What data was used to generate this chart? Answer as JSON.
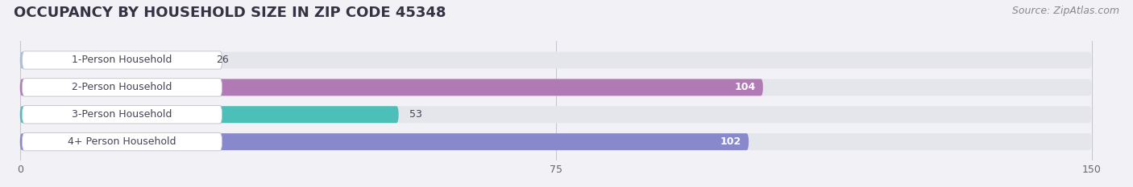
{
  "title": "OCCUPANCY BY HOUSEHOLD SIZE IN ZIP CODE 45348",
  "source": "Source: ZipAtlas.com",
  "categories": [
    "1-Person Household",
    "2-Person Household",
    "3-Person Household",
    "4+ Person Household"
  ],
  "values": [
    26,
    104,
    53,
    102
  ],
  "bar_colors": [
    "#a8bede",
    "#b07ab5",
    "#4bbfb8",
    "#8888cc"
  ],
  "label_colors": [
    "#555555",
    "#ffffff",
    "#555555",
    "#ffffff"
  ],
  "xlim_max": 150,
  "xticks": [
    0,
    75,
    150
  ],
  "background_color": "#f2f2f6",
  "bar_bg_color": "#e5e5ec",
  "title_fontsize": 13,
  "source_fontsize": 9,
  "bar_label_fontsize": 9,
  "value_fontsize": 9,
  "tick_fontsize": 9
}
